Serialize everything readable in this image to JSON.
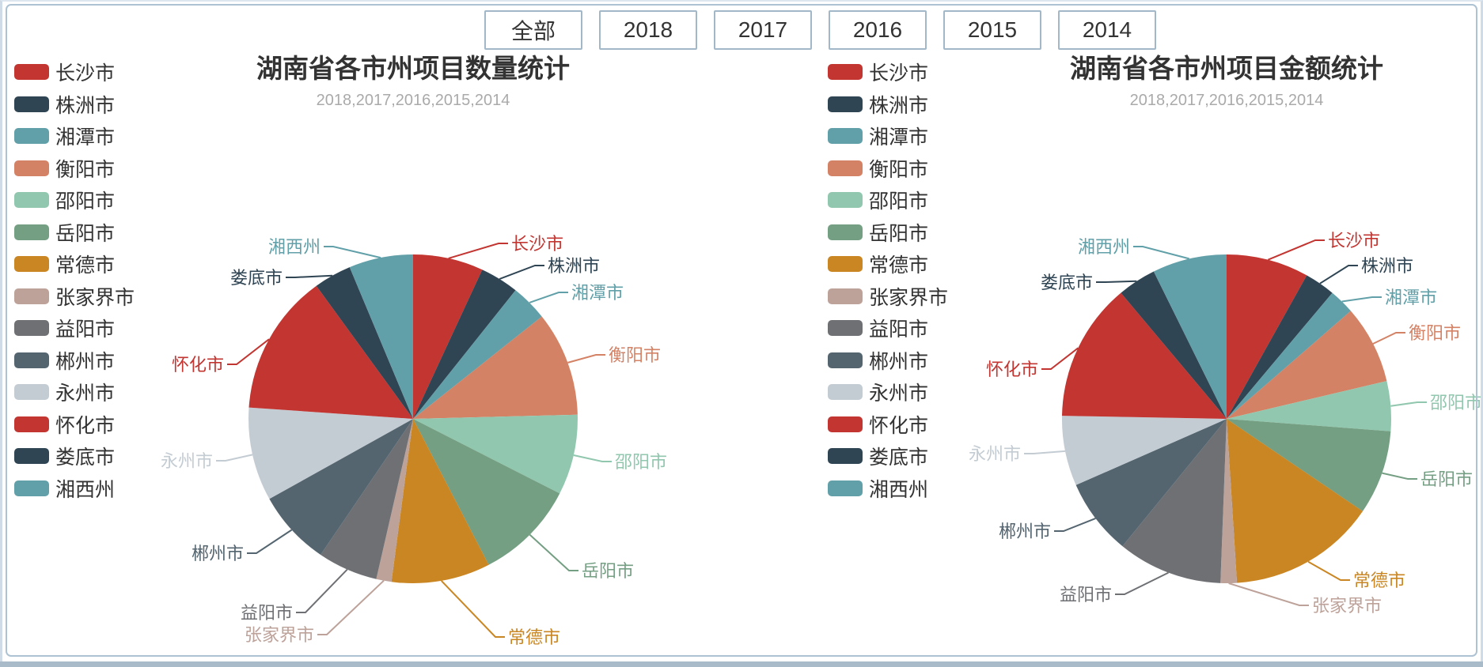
{
  "page": {
    "frame_border_color": "#adc2d2",
    "bottom_bar_color": "#a9bac9",
    "button_border_color": "#a2b8c8",
    "title_color": "#333333",
    "subtitle_color": "#aaaaaa"
  },
  "filters": {
    "buttons": [
      "全部",
      "2018",
      "2017",
      "2016",
      "2015",
      "2014"
    ]
  },
  "chart_data": [
    {
      "type": "pie",
      "title": "湖南省各市州项目数量统计",
      "subtitle": "2018,2017,2016,2015,2014",
      "legend_position": "left",
      "labels": [
        "长沙市",
        "株洲市",
        "湘潭市",
        "衡阳市",
        "邵阳市",
        "岳阳市",
        "常德市",
        "张家界市",
        "益阳市",
        "郴州市",
        "永州市",
        "怀化市",
        "娄底市",
        "湘西州"
      ],
      "values": [
        6.9,
        3.8,
        3.6,
        10.3,
        7.9,
        9.9,
        9.7,
        1.5,
        5.9,
        7.4,
        9.2,
        13.9,
        3.7,
        6.3
      ],
      "unit": "percent_of_total_estimated_from_arc_angles",
      "colors": [
        "#c23531",
        "#2f4554",
        "#61a0a8",
        "#d48265",
        "#91c7ae",
        "#749f83",
        "#ca8622",
        "#bda29a",
        "#6e7074",
        "#546570",
        "#c4ccd3",
        "#c23531",
        "#2f4554",
        "#61a0a8"
      ]
    },
    {
      "type": "pie",
      "title": "湖南省各市州项目金额统计",
      "subtitle": "2018,2017,2016,2015,2014",
      "legend_position": "left",
      "labels": [
        "长沙市",
        "株洲市",
        "湘潭市",
        "衡阳市",
        "邵阳市",
        "岳阳市",
        "常德市",
        "张家界市",
        "益阳市",
        "郴州市",
        "永州市",
        "怀化市",
        "娄底市",
        "湘西州"
      ],
      "values": [
        8.1,
        3.0,
        2.5,
        7.7,
        4.9,
        8.3,
        14.5,
        1.6,
        10.3,
        7.5,
        6.9,
        13.6,
        3.8,
        7.3
      ],
      "unit": "percent_of_total_estimated_from_arc_angles",
      "colors": [
        "#c23531",
        "#2f4554",
        "#61a0a8",
        "#d48265",
        "#91c7ae",
        "#749f83",
        "#ca8622",
        "#bda29a",
        "#6e7074",
        "#546570",
        "#c4ccd3",
        "#c23531",
        "#2f4554",
        "#61a0a8"
      ]
    }
  ]
}
